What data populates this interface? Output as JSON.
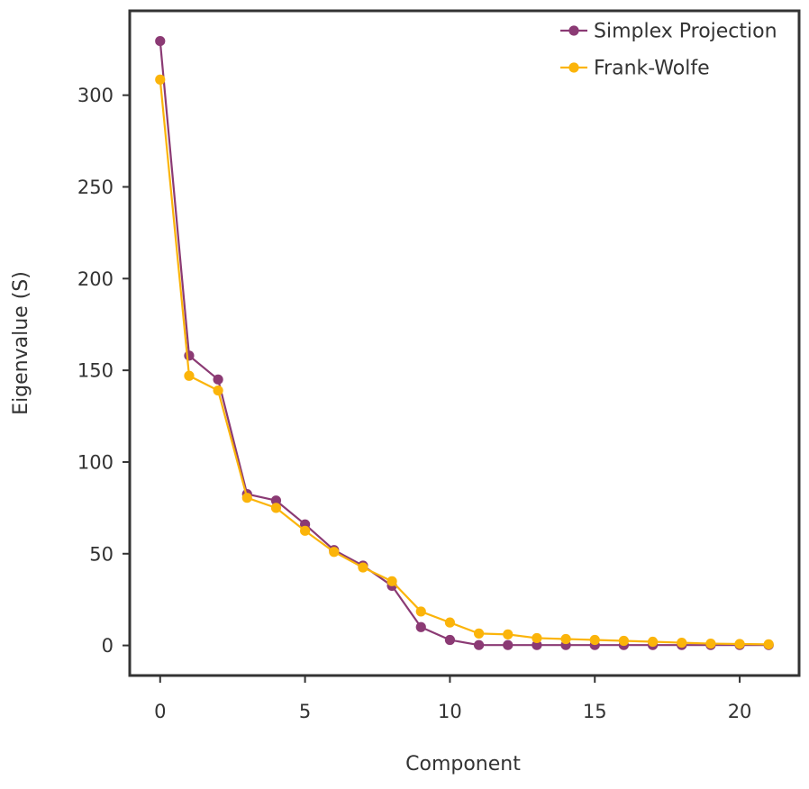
{
  "chart_data": {
    "type": "line",
    "title": "",
    "xlabel": "Component",
    "ylabel": "Eigenvalue (S)",
    "xlim": [
      -1.05,
      22.05
    ],
    "ylim": [
      -16.4,
      346
    ],
    "x_ticks": [
      0,
      5,
      10,
      15,
      20
    ],
    "y_ticks": [
      0,
      50,
      100,
      150,
      200,
      250,
      300
    ],
    "grid": false,
    "legend_position": "top-right",
    "x": [
      0,
      1,
      2,
      3,
      4,
      5,
      6,
      7,
      8,
      9,
      10,
      11,
      12,
      13,
      14,
      15,
      16,
      17,
      18,
      19,
      20,
      21
    ],
    "series": [
      {
        "name": "Simplex Projection",
        "color": "#8b3a74",
        "marker": "circle",
        "values": [
          329.5,
          158,
          145,
          82.5,
          79,
          66,
          52,
          43.5,
          32.5,
          10,
          3,
          0.2,
          0.2,
          0.2,
          0.2,
          0.2,
          0.2,
          0.2,
          0.2,
          0.2,
          0.2,
          0.2
        ]
      },
      {
        "name": "Frank-Wolfe",
        "color": "#fbb40a",
        "marker": "circle",
        "values": [
          308.5,
          147,
          139,
          80.5,
          75,
          62.5,
          51,
          42.5,
          35,
          18.5,
          12.5,
          6.5,
          6,
          4,
          3.5,
          3,
          2.5,
          2,
          1.5,
          1,
          0.8,
          0.6
        ]
      }
    ]
  }
}
